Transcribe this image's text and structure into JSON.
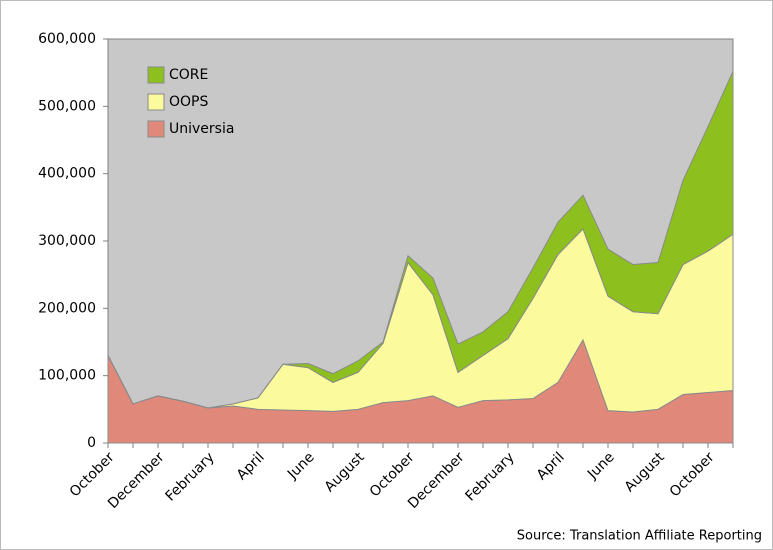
{
  "chart_data": {
    "type": "area",
    "stacked": true,
    "categories": [
      "October",
      null,
      "December",
      null,
      "February",
      null,
      "April",
      null,
      "June",
      null,
      "August",
      null,
      "October",
      null,
      "December",
      null,
      "February",
      null,
      "April",
      null,
      "June",
      null,
      "August",
      null,
      "October",
      null
    ],
    "series": [
      {
        "name": "Universia",
        "color": "#e0897a",
        "values": [
          130000,
          58000,
          70000,
          62000,
          52000,
          55000,
          50000,
          49000,
          48000,
          47000,
          50000,
          60000,
          63000,
          70000,
          53000,
          63000,
          64000,
          66000,
          90000,
          153000,
          48000,
          46000,
          50000,
          72000,
          75000,
          78000
        ]
      },
      {
        "name": "OOPS",
        "color": "#fbfb9e",
        "values": [
          0,
          0,
          0,
          0,
          0,
          3000,
          17000,
          68000,
          64000,
          43000,
          55000,
          88000,
          205000,
          150000,
          52000,
          67000,
          91000,
          149000,
          190000,
          165000,
          170000,
          149000,
          142000,
          193000,
          210000,
          232000
        ]
      },
      {
        "name": "CORE",
        "color": "#8dbf1f",
        "values": [
          0,
          0,
          0,
          0,
          0,
          0,
          0,
          0,
          6000,
          13000,
          17000,
          2000,
          10000,
          25000,
          42000,
          35000,
          40000,
          45000,
          48000,
          50000,
          70000,
          70000,
          76000,
          125000,
          185000,
          242000
        ]
      }
    ],
    "ylim": [
      0,
      600000
    ],
    "yticks": [
      0,
      {
        "value": 100000,
        "label": "100,000"
      },
      {
        "value": 200000,
        "label": "200,000"
      },
      {
        "value": 300000,
        "label": "300,000"
      },
      {
        "value": 400000,
        "label": "400,000"
      },
      {
        "value": 500000,
        "label": "500,000"
      },
      {
        "value": 600000,
        "label": "600,000"
      }
    ],
    "legend": "upper left",
    "annotation": "Source: Translation Affiliate Reporting"
  }
}
